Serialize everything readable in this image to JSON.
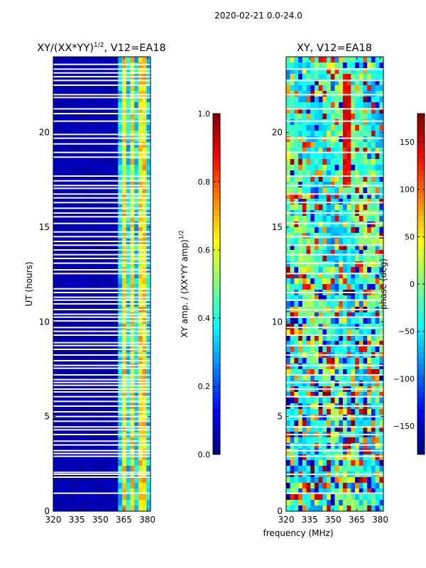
{
  "suptitle": "2020-02-21 0.0-24.0",
  "chart_data": [
    {
      "type": "heatmap",
      "title": "XY/(XX*YY)^{1/2}, V12=EA18",
      "title_main": "XY/(XX*YY)",
      "title_exp": "1/2",
      "title_tail": ", V12=EA18",
      "xlabel": "",
      "ylabel": "UT (hours)",
      "xlim": [
        320,
        382
      ],
      "ylim": [
        0,
        24
      ],
      "xticks": [
        320,
        335,
        350,
        365,
        380
      ],
      "yticks": [
        0,
        5,
        10,
        15,
        20
      ],
      "colorbar": {
        "label": "XY amp. / (XX*YY amp)^{1/2}",
        "label_main": "XY amp. / (XX*YY amp)",
        "label_exp": "1/2",
        "range": [
          0.0,
          1.0
        ],
        "ticks": [
          "0.0",
          "0.2",
          "0.4",
          "0.6",
          "0.8",
          "1.0"
        ],
        "colormap": "jet"
      },
      "flagged_hours": [
        0.95,
        1.8,
        1.95,
        2.05,
        2.9,
        3.05,
        3.2,
        3.5,
        3.7,
        4.05,
        4.3,
        4.45,
        4.75,
        5.0,
        5.25,
        5.55,
        5.8,
        6.05,
        6.3,
        6.45,
        6.65,
        6.8,
        6.95,
        7.2,
        7.55,
        7.7,
        7.95,
        8.25,
        8.55,
        8.75,
        8.9,
        9.3,
        9.5,
        9.7,
        10.05,
        10.25,
        10.4,
        10.65,
        10.95,
        11.15,
        11.3,
        11.55,
        11.75,
        12.55,
        12.75,
        13.1,
        13.35,
        13.55,
        13.8,
        14.05,
        14.25,
        14.5,
        14.75,
        15.2,
        15.55,
        15.75,
        16.0,
        16.3,
        16.55,
        16.75,
        17.05,
        17.2,
        17.45,
        17.7,
        18.7,
        18.95,
        19.4,
        19.7,
        19.9,
        20.6,
        21.0,
        21.25,
        21.85,
        22.0,
        22.5,
        22.75,
        22.95,
        23.15,
        23.35,
        23.6
      ]
    },
    {
      "type": "heatmap",
      "title": "XY, V12=EA18",
      "xlabel": "frequency (MHz)",
      "ylabel": "",
      "xlim": [
        320,
        382
      ],
      "ylim": [
        0,
        24
      ],
      "xticks": [
        320,
        335,
        350,
        365,
        380
      ],
      "yticks": [
        0,
        5,
        10,
        15,
        20
      ],
      "colorbar": {
        "label": "phase (deg)",
        "range": [
          -180,
          180
        ],
        "ticks": [
          "−150",
          "−100",
          "−50",
          "0",
          "50",
          "100",
          "150"
        ],
        "tick_values": [
          -150,
          -100,
          -50,
          0,
          50,
          100,
          150
        ],
        "colormap": "jet"
      },
      "flagged_hours": [
        0.95,
        1.95,
        2.9,
        3.2,
        3.5,
        4.05,
        4.45,
        5.0,
        5.55,
        6.05,
        6.45,
        6.8,
        7.2,
        7.7,
        8.25,
        8.75,
        9.3,
        9.7,
        10.25,
        10.65,
        11.15,
        11.55,
        12.55,
        13.1,
        13.55,
        14.05,
        14.5,
        15.2,
        15.75,
        16.3,
        16.75,
        17.2,
        17.7,
        18.95,
        19.7,
        20.6,
        21.25,
        22.0,
        22.75,
        23.35
      ]
    }
  ]
}
